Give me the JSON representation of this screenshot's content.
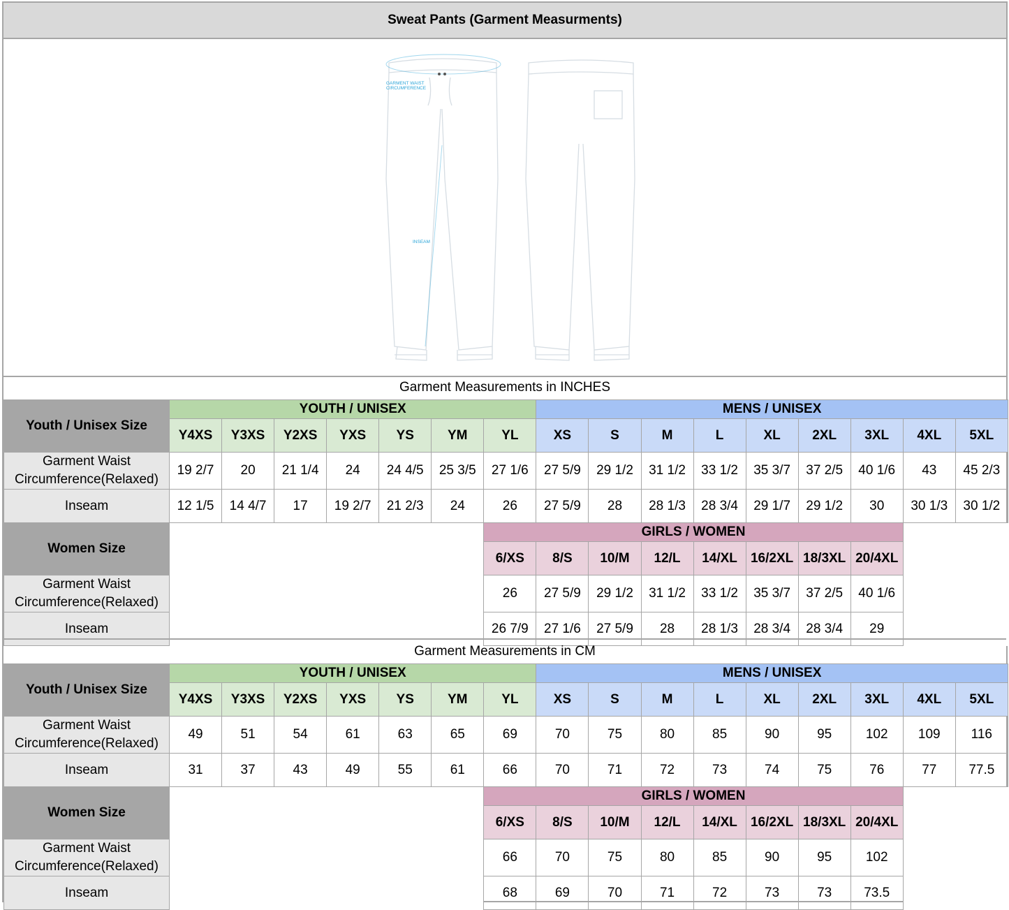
{
  "title": "Sweat Pants (Garment Measurments)",
  "drawing": {
    "labels": {
      "waist": "GARMENT WAIST CIRCUMFERENCE",
      "waist_line1": "GARMENT WAIST",
      "waist_line2": "CIRCUMFERENCE",
      "inseam": "INSEAM"
    },
    "accent_color": "#2aa4d8"
  },
  "colors": {
    "youth_band": "#b6d7a8",
    "youth_cell": "#d9ead3",
    "mens_band": "#a4c2f4",
    "mens_cell": "#c9daf8",
    "girls_band": "#d5a6bd",
    "girls_cell": "#ead1dc",
    "label_gray": "#a6a6a6"
  },
  "inches": {
    "section_title": "Garment Measurements in INCHES",
    "youth_size_label": "Youth / Unisex Size",
    "youth_group": "YOUTH / UNISEX",
    "mens_group": "MENS / UNISEX",
    "youth_sizes": [
      "Y4XS",
      "Y3XS",
      "Y2XS",
      "YXS",
      "YS",
      "YM",
      "YL"
    ],
    "mens_sizes": [
      "XS",
      "S",
      "M",
      "L",
      "XL",
      "2XL",
      "3XL",
      "4XL",
      "5XL"
    ],
    "waist_label": "Garment Waist Circumference(Relaxed)",
    "inseam_label": "Inseam",
    "unisex_waist": [
      "19 2/7",
      "20",
      "21 1/4",
      "24",
      "24 4/5",
      "25 3/5",
      "27 1/6",
      "27 5/9",
      "29 1/2",
      "31 1/2",
      "33 1/2",
      "35 3/7",
      "37 2/5",
      "40 1/6",
      "43",
      "45 2/3"
    ],
    "unisex_inseam": [
      "12 1/5",
      "14 4/7",
      "17",
      "19 2/7",
      "21 2/3",
      "24",
      "26",
      "27 5/9",
      "28",
      "28 1/3",
      "28 3/4",
      "29 1/7",
      "29 1/2",
      "30",
      "30 1/3",
      "30 1/2"
    ],
    "women_size_label": "Women Size",
    "girls_group": "GIRLS / WOMEN",
    "girls_sizes": [
      "6/XS",
      "8/S",
      "10/M",
      "12/L",
      "14/XL",
      "16/2XL",
      "18/3XL",
      "20/4XL"
    ],
    "women_waist": [
      "26",
      "27 5/9",
      "29 1/2",
      "31 1/2",
      "33 1/2",
      "35 3/7",
      "37 2/5",
      "40 1/6"
    ],
    "women_inseam": [
      "26 7/9",
      "27 1/6",
      "27 5/9",
      "28",
      "28 1/3",
      "28 3/4",
      "28 3/4",
      "29"
    ]
  },
  "cm": {
    "section_title": "Garment Measurements in CM",
    "youth_size_label": "Youth / Unisex Size",
    "youth_group": "YOUTH / UNISEX",
    "mens_group": "MENS / UNISEX",
    "youth_sizes": [
      "Y4XS",
      "Y3XS",
      "Y2XS",
      "YXS",
      "YS",
      "YM",
      "YL"
    ],
    "mens_sizes": [
      "XS",
      "S",
      "M",
      "L",
      "XL",
      "2XL",
      "3XL",
      "4XL",
      "5XL"
    ],
    "waist_label": "Garment Waist Circumference(Relaxed)",
    "inseam_label": "Inseam",
    "unisex_waist": [
      "49",
      "51",
      "54",
      "61",
      "63",
      "65",
      "69",
      "70",
      "75",
      "80",
      "85",
      "90",
      "95",
      "102",
      "109",
      "116"
    ],
    "unisex_inseam": [
      "31",
      "37",
      "43",
      "49",
      "55",
      "61",
      "66",
      "70",
      "71",
      "72",
      "73",
      "74",
      "75",
      "76",
      "77",
      "77.5"
    ],
    "women_size_label": "Women Size",
    "girls_group": "GIRLS / WOMEN",
    "girls_sizes": [
      "6/XS",
      "8/S",
      "10/M",
      "12/L",
      "14/XL",
      "16/2XL",
      "18/3XL",
      "20/4XL"
    ],
    "women_waist": [
      "66",
      "70",
      "75",
      "80",
      "85",
      "90",
      "95",
      "102"
    ],
    "women_inseam": [
      "68",
      "69",
      "70",
      "71",
      "72",
      "73",
      "73",
      "73.5"
    ]
  }
}
